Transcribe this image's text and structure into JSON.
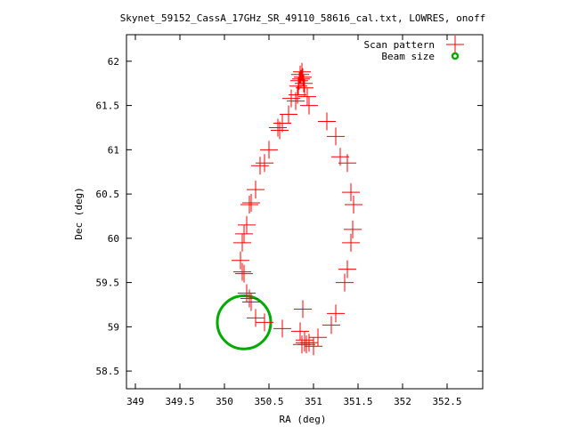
{
  "chart_data": {
    "type": "scatter",
    "title": "Skynet_59152_CassA_17GHz_SR_49110_58616_cal.txt, LOWRES, onoff",
    "xlabel": "RA (deg)",
    "ylabel": "Dec (deg)",
    "xlim": [
      348.9,
      352.9
    ],
    "ylim": [
      58.3,
      62.3
    ],
    "x_ticks": [
      "349",
      "349.5",
      "350",
      "350.5",
      "351",
      "351.5",
      "352",
      "352.5"
    ],
    "x_tick_values": [
      349,
      349.5,
      350,
      350.5,
      351,
      351.5,
      352,
      352.5
    ],
    "y_ticks": [
      "58.5",
      "59",
      "59.5",
      "60",
      "60.5",
      "61",
      "61.5",
      "62"
    ],
    "y_tick_values": [
      58.5,
      59,
      59.5,
      60,
      60.5,
      61,
      61.5,
      62
    ],
    "grid": false,
    "legend_position": "top-right",
    "series": [
      {
        "name": "Scan pattern",
        "marker": "plus",
        "color": "#ff0000",
        "x": [
          350.85,
          350.86,
          350.87,
          350.88,
          350.84,
          350.89,
          350.83,
          350.9,
          350.82,
          350.8,
          350.75,
          350.72,
          350.65,
          350.62,
          350.6,
          350.5,
          350.45,
          350.4,
          350.35,
          350.3,
          350.28,
          350.25,
          350.22,
          350.2,
          350.18,
          350.2,
          350.22,
          350.25,
          350.28,
          350.3,
          350.35,
          350.45,
          350.65,
          350.85,
          350.87,
          350.9,
          350.92,
          350.95,
          351.0,
          351.05,
          351.2,
          351.25,
          351.35,
          351.38,
          351.42,
          351.44,
          351.45,
          351.42,
          351.38,
          351.3,
          351.25,
          351.15,
          350.95,
          350.93,
          350.9,
          350.88
        ],
        "y": [
          61.85,
          61.8,
          61.88,
          61.82,
          61.78,
          61.75,
          61.72,
          61.7,
          61.62,
          61.55,
          61.58,
          61.4,
          61.3,
          61.22,
          61.25,
          61.0,
          60.85,
          60.82,
          60.55,
          60.4,
          60.38,
          60.15,
          60.05,
          59.95,
          59.75,
          59.62,
          59.6,
          59.38,
          59.32,
          59.28,
          59.1,
          59.05,
          58.98,
          58.95,
          58.8,
          58.85,
          58.8,
          58.82,
          58.78,
          58.88,
          59.02,
          59.15,
          59.5,
          59.65,
          59.95,
          60.1,
          60.38,
          60.52,
          60.85,
          60.92,
          61.15,
          61.32,
          61.5,
          61.6,
          58.82,
          59.2
        ]
      },
      {
        "name": "Beam size",
        "marker": "circle",
        "color": "#00aa00",
        "center": [
          350.22,
          59.05
        ],
        "radius_deg": 0.3
      }
    ]
  }
}
